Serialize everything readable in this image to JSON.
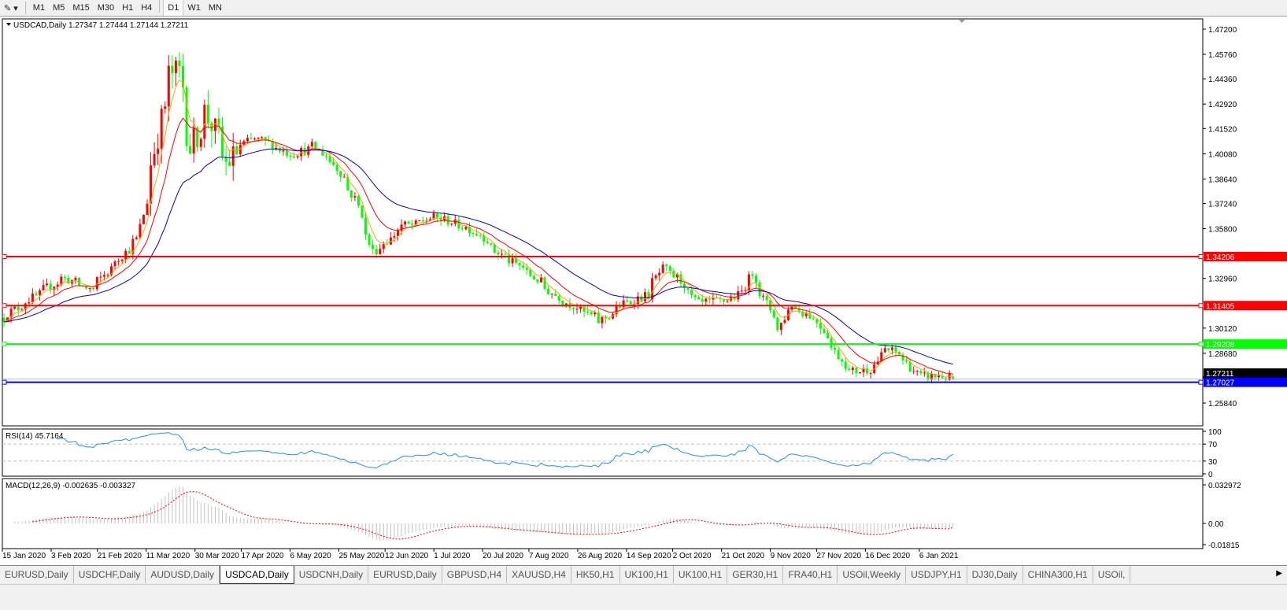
{
  "toolbar": {
    "timeframes": [
      "M1",
      "M5",
      "M15",
      "M30",
      "H1",
      "H4",
      "D1",
      "W1",
      "MN"
    ],
    "active": "D1"
  },
  "chart": {
    "header": "USDCAD,Daily  1.27347 1.27444 1.27144 1.27211",
    "symbol": "USDCAD",
    "timeframe": "Daily",
    "open": 1.27347,
    "high": 1.27444,
    "low": 1.27144,
    "close": 1.27211,
    "price_ticks": [
      "1.47200",
      "1.45760",
      "1.44360",
      "1.42920",
      "1.41520",
      "1.40080",
      "1.38640",
      "1.37240",
      "1.35800",
      "1.32960",
      "1.30120",
      "1.28680",
      "1.25840"
    ],
    "hlines": [
      {
        "price": "1.34206",
        "color": "#ff0000"
      },
      {
        "price": "1.31405",
        "color": "#ff0000"
      },
      {
        "price": "1.29208",
        "color": "#00ff00"
      },
      {
        "price": "1.27027",
        "color": "#0000ff"
      }
    ],
    "current_price": "1.27211",
    "colors": {
      "bull": "#ff0000",
      "bear": "#00ff00",
      "ma_fast": "#ffa500",
      "ma_mid": "#ff0000",
      "ma_slow": "#0000cd"
    },
    "date_labels": [
      "15 Jan 2020",
      "3 Feb 2020",
      "21 Feb 2020",
      "11 Mar 2020",
      "30 Mar 2020",
      "17 Apr 2020",
      "6 May 2020",
      "25 May 2020",
      "12 Jun 2020",
      "1 Jul 2020",
      "20 Jul 2020",
      "7 Aug 2020",
      "26 Aug 2020",
      "14 Sep 2020",
      "2 Oct 2020",
      "21 Oct 2020",
      "9 Nov 2020",
      "27 Nov 2020",
      "16 Dec 2020",
      "6 Jan 2021"
    ]
  },
  "chart_data": {
    "type": "candlestick",
    "approx_close_path": [
      [
        "2020-01-10",
        1.307
      ],
      [
        "2020-02-03",
        1.33
      ],
      [
        "2020-02-14",
        1.323
      ],
      [
        "2020-02-24",
        1.34
      ],
      [
        "2020-03-03",
        1.352
      ],
      [
        "2020-03-09",
        1.395
      ],
      [
        "2020-03-15",
        1.445
      ],
      [
        "2020-03-19",
        1.448
      ],
      [
        "2020-03-24",
        1.405
      ],
      [
        "2020-03-30",
        1.425
      ],
      [
        "2020-04-07",
        1.395
      ],
      [
        "2020-04-12",
        1.405
      ],
      [
        "2020-04-18",
        1.41
      ],
      [
        "2020-04-26",
        1.405
      ],
      [
        "2020-05-02",
        1.4
      ],
      [
        "2020-05-11",
        1.405
      ],
      [
        "2020-05-19",
        1.395
      ],
      [
        "2020-05-27",
        1.375
      ],
      [
        "2020-06-03",
        1.345
      ],
      [
        "2020-06-10",
        1.352
      ],
      [
        "2020-06-13",
        1.36
      ],
      [
        "2020-06-19",
        1.36
      ],
      [
        "2020-06-27",
        1.365
      ],
      [
        "2020-07-07",
        1.36
      ],
      [
        "2020-07-15",
        1.355
      ],
      [
        "2020-07-21",
        1.345
      ],
      [
        "2020-08-01",
        1.335
      ],
      [
        "2020-08-13",
        1.32
      ],
      [
        "2020-08-31",
        1.305
      ],
      [
        "2020-09-09",
        1.315
      ],
      [
        "2020-09-18",
        1.32
      ],
      [
        "2020-09-24",
        1.335
      ],
      [
        "2020-09-30",
        1.33
      ],
      [
        "2020-10-08",
        1.315
      ],
      [
        "2020-10-19",
        1.317
      ],
      [
        "2020-10-26",
        1.322
      ],
      [
        "2020-10-29",
        1.333
      ],
      [
        "2020-11-04",
        1.315
      ],
      [
        "2020-11-09",
        1.3
      ],
      [
        "2020-11-13",
        1.315
      ],
      [
        "2020-11-24",
        1.305
      ],
      [
        "2020-11-30",
        1.29
      ],
      [
        "2020-12-06",
        1.276
      ],
      [
        "2020-12-15",
        1.278
      ],
      [
        "2020-12-20",
        1.29
      ],
      [
        "2020-12-27",
        1.285
      ],
      [
        "2021-01-02",
        1.273
      ],
      [
        "2021-01-11",
        1.274
      ],
      [
        "2021-01-15",
        1.27211
      ]
    ],
    "ylim": [
      1.2584,
      1.472
    ]
  },
  "rsi": {
    "label": "RSI(14) 45.7164",
    "value": 45.7164,
    "ticks": [
      "100",
      "70",
      "30",
      "0"
    ],
    "levels": [
      70,
      30
    ],
    "color": "#1e90ff"
  },
  "macd": {
    "label": "MACD(12,26,9) -0.002635 -0.003327",
    "main": -0.002635,
    "signal": -0.003327,
    "ticks": [
      "0.032972",
      "0.00",
      "-0.01815"
    ],
    "hist_color": "#c0c0c0",
    "signal_color": "#ff0000"
  },
  "tabs": [
    "EURUSD,Daily",
    "USDCHF,Daily",
    "AUDUSD,Daily",
    "USDCAD,Daily",
    "USDCNH,Daily",
    "EURUSD,Daily",
    "GBPUSD,H4",
    "XAUUSD,H4",
    "HK50,H1",
    "UK100,H1",
    "UK100,H1",
    "GER30,H1",
    "FRA40,H1",
    "USOil,Weekly",
    "USDJPY,H1",
    "DJ30,Daily",
    "CHINA300,H1",
    "USOil,"
  ],
  "active_tab": 3
}
